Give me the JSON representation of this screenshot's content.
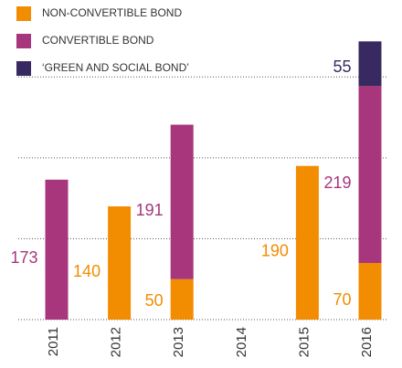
{
  "chart_data": {
    "type": "stacked_bar",
    "categories": [
      "2011",
      "2012",
      "2013",
      "2014",
      "2015",
      "2016"
    ],
    "series": [
      {
        "name": "NON-CONVERTIBLE BOND",
        "color": "#f28c00",
        "values": [
          null,
          140,
          50,
          null,
          190,
          70
        ]
      },
      {
        "name": "CONVERTIBLE BOND",
        "color": "#a8367c",
        "values": [
          173,
          null,
          191,
          null,
          null,
          219
        ]
      },
      {
        "name": "‘GREEN AND SOCIAL BOND’",
        "color": "#382a60",
        "values": [
          null,
          null,
          null,
          null,
          null,
          55
        ]
      }
    ],
    "ylim": [
      0,
      350
    ],
    "yticks": [
      0,
      100,
      200,
      300
    ],
    "grid": true,
    "legend": "top-left"
  }
}
